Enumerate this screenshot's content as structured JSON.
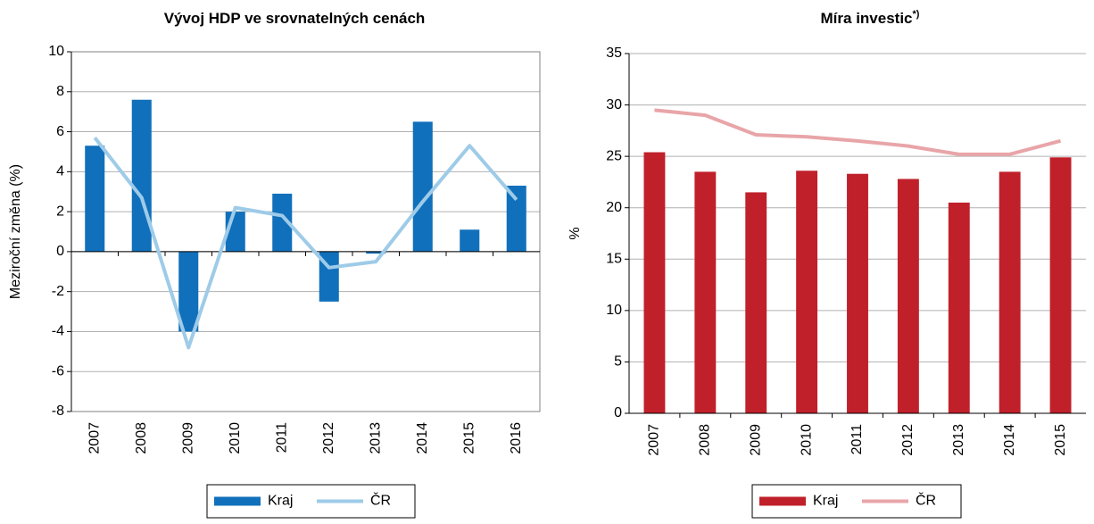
{
  "chart_data": [
    {
      "type": "bar",
      "title": "Vývoj HDP ve srovnatelných cenách",
      "y_label": "Meziroční změna (%)",
      "categories": [
        "2007",
        "2008",
        "2009",
        "2010",
        "2011",
        "2012",
        "2013",
        "2014",
        "2015",
        "2016"
      ],
      "series": [
        {
          "name": "Kraj",
          "type": "bar",
          "color": "#1170bb",
          "values": [
            5.3,
            7.6,
            -4.0,
            2.0,
            2.9,
            -2.5,
            -0.1,
            6.5,
            1.1,
            3.3
          ]
        },
        {
          "name": "ČR",
          "type": "line",
          "color": "#9ecbe8",
          "values": [
            5.7,
            2.7,
            -4.8,
            2.2,
            1.8,
            -0.8,
            -0.5,
            2.5,
            5.3,
            2.6
          ]
        }
      ],
      "ylim": [
        -8,
        10
      ],
      "yticks": [
        -8,
        -6,
        -4,
        -2,
        0,
        2,
        4,
        6,
        8,
        10
      ],
      "grid": true,
      "legend": "bottom"
    },
    {
      "type": "bar",
      "title": "Míra investic",
      "title_note": "*)",
      "y_label": "%",
      "categories": [
        "2007",
        "2008",
        "2009",
        "2010",
        "2011",
        "2012",
        "2013",
        "2014",
        "2015"
      ],
      "series": [
        {
          "name": "Kraj",
          "type": "bar",
          "color": "#c0202a",
          "values": [
            25.4,
            23.5,
            21.5,
            23.6,
            23.3,
            22.8,
            20.5,
            23.5,
            24.9
          ]
        },
        {
          "name": "ČR",
          "type": "line",
          "color": "#e8a5a8",
          "values": [
            29.5,
            29.0,
            27.1,
            26.9,
            26.5,
            26.0,
            25.2,
            25.2,
            26.5
          ]
        }
      ],
      "ylim": [
        0,
        35
      ],
      "yticks": [
        0,
        5,
        10,
        15,
        20,
        25,
        30,
        35
      ],
      "grid": true,
      "legend": "bottom"
    }
  ]
}
